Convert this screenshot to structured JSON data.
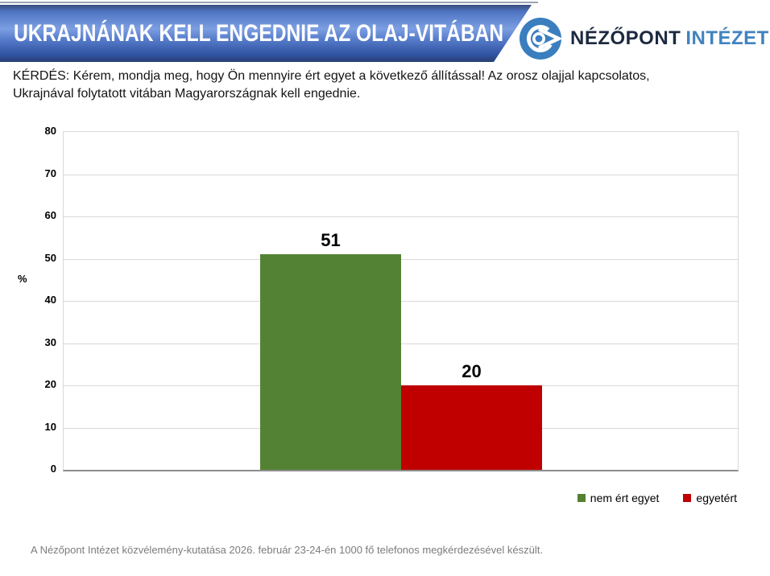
{
  "banner": {
    "title": "UKRAJNÁNAK KELL ENGEDNIE AZ OLAJ-VITÁBAN"
  },
  "logo": {
    "name_primary": "NÉZŐPONT",
    "name_secondary": "INTÉZET",
    "icon": "eye-in-circle-icon",
    "icon_color": "#3a7ebf"
  },
  "question": {
    "line1": "KÉRDÉS: Kérem, mondja meg, hogy Ön mennyire ért egyet a következező állítással! Az orosz olajjal kapcsolatos,",
    "line1_corrected": "KÉRDÉS: Kérem, mondja meg, hogy Ön mennyire ért egyet a következő állítással! Az orosz olajjal kapcsolatos,",
    "line2": "Ukrajnával folytatott vitában Magyarországnak kell engednie."
  },
  "chart_data": {
    "type": "bar",
    "categories": [
      "nem ért egyet",
      "egyetért"
    ],
    "values": [
      51,
      20
    ],
    "colors": [
      "#548235",
      "#C00000"
    ],
    "title": "",
    "xlabel": "",
    "ylabel": "%",
    "ylim": [
      0,
      80
    ],
    "yticks": [
      0,
      10,
      20,
      30,
      40,
      50,
      60,
      70,
      80
    ],
    "grid": true,
    "gridline_color": "#d9d9d9",
    "legend_position": "bottom-right",
    "value_labels": [
      "51",
      "20"
    ]
  },
  "legend": {
    "items": [
      {
        "label": "nem ért egyet",
        "color": "#548235"
      },
      {
        "label": "egyetért",
        "color": "#C00000"
      }
    ]
  },
  "footer": {
    "text": "A Nézőpont Intézet közvélemény-kutatása 2026. február 23-24-én 1000 fő telefonos megkérdezésével készült."
  }
}
